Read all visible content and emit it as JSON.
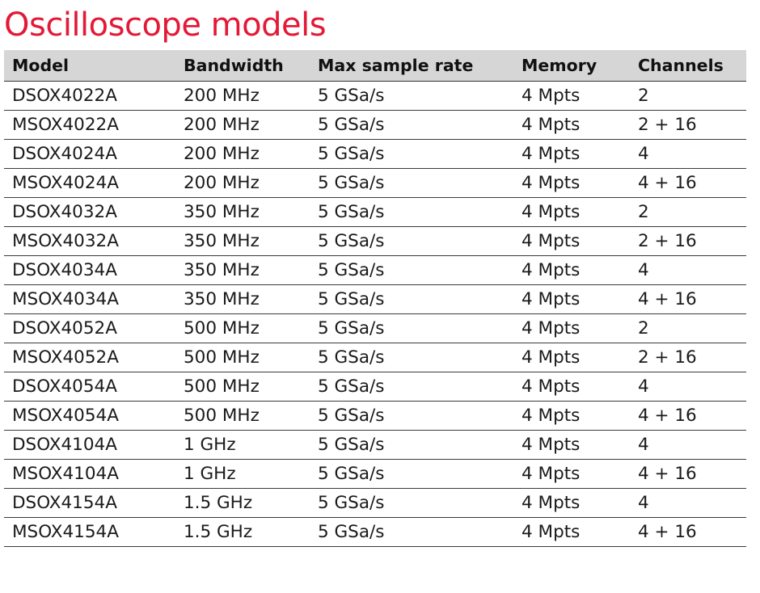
{
  "title": "Oscilloscope models",
  "columns": [
    "Model",
    "Bandwidth",
    "Max sample rate",
    "Memory",
    "Channels"
  ],
  "rows": [
    [
      "DSOX4022A",
      "200 MHz",
      "5 GSa/s",
      "4 Mpts",
      "2"
    ],
    [
      "MSOX4022A",
      "200 MHz",
      "5 GSa/s",
      "4 Mpts",
      "2 + 16"
    ],
    [
      "DSOX4024A",
      "200 MHz",
      "5 GSa/s",
      "4 Mpts",
      "4"
    ],
    [
      "MSOX4024A",
      "200 MHz",
      "5 GSa/s",
      "4 Mpts",
      "4 + 16"
    ],
    [
      "DSOX4032A",
      "350 MHz",
      "5 GSa/s",
      "4 Mpts",
      "2"
    ],
    [
      "MSOX4032A",
      "350 MHz",
      "5 GSa/s",
      "4 Mpts",
      "2 + 16"
    ],
    [
      "DSOX4034A",
      "350 MHz",
      "5 GSa/s",
      "4 Mpts",
      "4"
    ],
    [
      "MSOX4034A",
      "350 MHz",
      "5 GSa/s",
      "4 Mpts",
      "4 + 16"
    ],
    [
      "DSOX4052A",
      "500 MHz",
      "5 GSa/s",
      "4 Mpts",
      "2"
    ],
    [
      "MSOX4052A",
      "500 MHz",
      "5 GSa/s",
      "4 Mpts",
      "2 + 16"
    ],
    [
      "DSOX4054A",
      "500 MHz",
      "5 GSa/s",
      "4 Mpts",
      "4"
    ],
    [
      "MSOX4054A",
      "500 MHz",
      "5 GSa/s",
      "4 Mpts",
      "4 + 16"
    ],
    [
      "DSOX4104A",
      "1 GHz",
      "5 GSa/s",
      "4 Mpts",
      "4"
    ],
    [
      "MSOX4104A",
      "1 GHz",
      "5 GSa/s",
      "4 Mpts",
      "4 + 16"
    ],
    [
      "DSOX4154A",
      "1.5 GHz",
      "5 GSa/s",
      "4 Mpts",
      "4"
    ],
    [
      "MSOX4154A",
      "1.5 GHz",
      "5 GSa/s",
      "4 Mpts",
      "4 + 16"
    ]
  ],
  "colors": {
    "title": "#e31937",
    "header_background": "#d6d6d6",
    "rule": "#333333",
    "text": "#1a1a1a"
  }
}
